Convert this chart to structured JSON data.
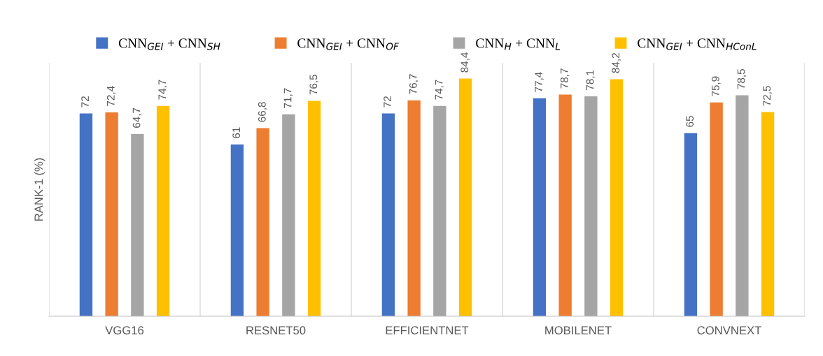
{
  "chart_data": {
    "type": "bar",
    "ylabel": "RANK-1 (%)",
    "categories": [
      "VGG16",
      "RESNET50",
      "EFFICIENTNET",
      "MOBILENET",
      "CONVNEXT"
    ],
    "series": [
      {
        "name": "CNN$_{GEI}$ + CNN$_{SH}$",
        "color": "#4472c4",
        "values": [
          72,
          61,
          72,
          77.4,
          65
        ],
        "value_labels": [
          "72",
          "61",
          "72",
          "77,4",
          "65"
        ]
      },
      {
        "name": "CNN$_{GEI}$ + CNN$_{OF}$",
        "color": "#ed7d31",
        "values": [
          72.4,
          66.8,
          76.7,
          78.7,
          75.9
        ],
        "value_labels": [
          "72,4",
          "66,8",
          "76,7",
          "78,7",
          "75,9"
        ]
      },
      {
        "name": "CNN$_{H}$ + CNN$_{L}$",
        "color": "#a5a5a5",
        "values": [
          64.7,
          71.7,
          74.7,
          78.1,
          78.5
        ],
        "value_labels": [
          "64,7",
          "71,7",
          "74,7",
          "78,1",
          "78,5"
        ]
      },
      {
        "name": "CNN$_{GEI}$ + CNN$_{HConL}$",
        "color": "#ffc000",
        "values": [
          74.7,
          76.5,
          84.4,
          84.2,
          72.5
        ],
        "value_labels": [
          "74,7",
          "76,5",
          "84,4",
          "84,2",
          "72,5"
        ]
      }
    ],
    "ylim": [
      0,
      90
    ],
    "tick_labels": "x",
    "grid": "x",
    "legend": "top"
  }
}
